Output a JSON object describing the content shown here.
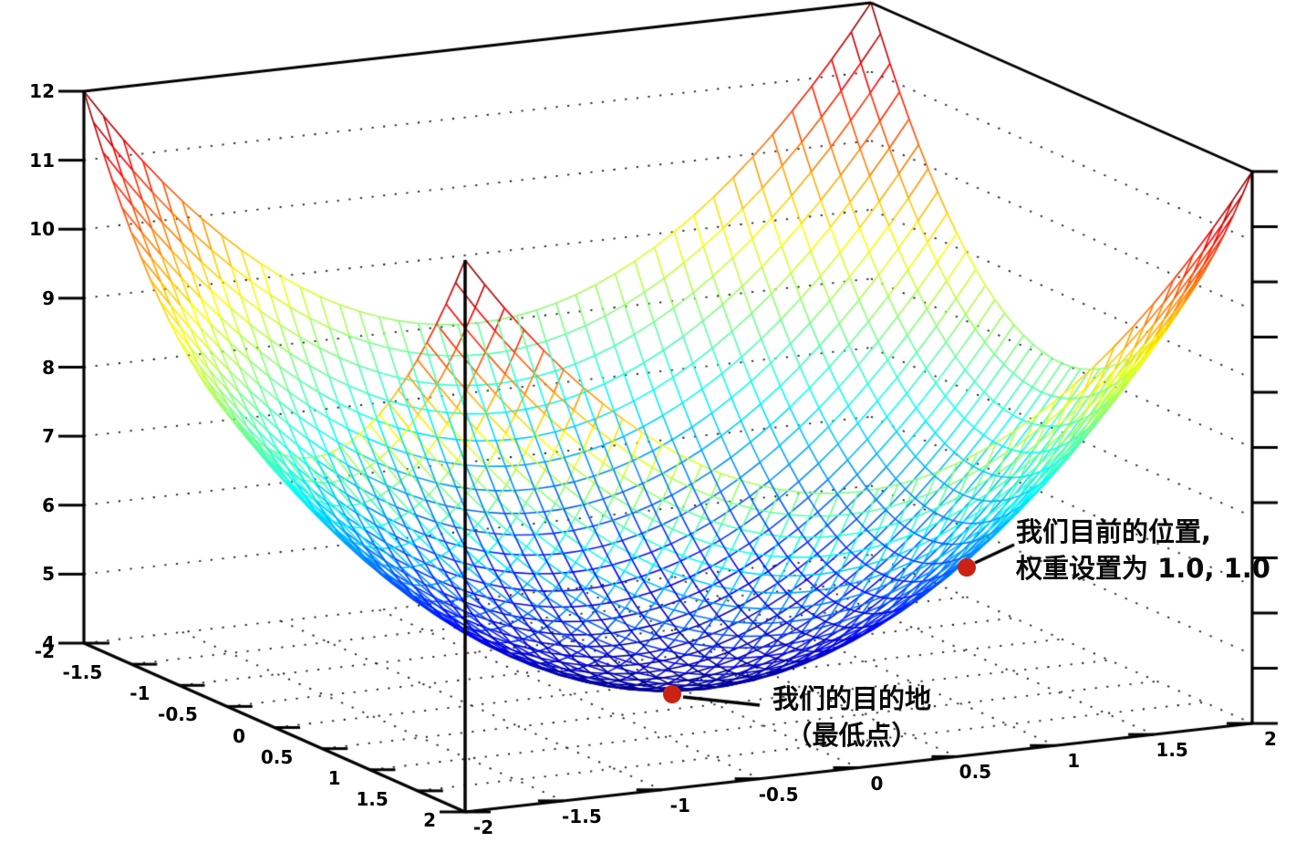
{
  "chart_data": {
    "type": "3d-surface-wireframe",
    "description": "Bowl-shaped error surface (paraboloid) used to illustrate gradient descent",
    "surface": {
      "formula": "z = x^2 + y^2 + 4",
      "x_range": [
        -2,
        2
      ],
      "y_range": [
        -2,
        2
      ],
      "z_range": [
        4,
        12
      ],
      "mesh_divisions": 40,
      "colormap": "jet"
    },
    "axes": {
      "z_tick_labels": [
        "12",
        "11",
        "10",
        "9",
        "8",
        "7",
        "6",
        "5",
        "4"
      ],
      "z_tick_values": [
        12,
        11,
        10,
        9,
        8,
        7,
        6,
        5,
        4
      ],
      "x_tick_labels": [
        "-2",
        "-1.5",
        "-1",
        "-0.5",
        "0",
        "0.5",
        "1",
        "1.5",
        "2"
      ],
      "x_tick_values": [
        -2,
        -1.5,
        -1,
        -0.5,
        0,
        0.5,
        1,
        1.5,
        2
      ],
      "y_tick_labels": [
        "-2",
        "-1.5",
        "-1",
        "-0.5",
        "0",
        "0.5",
        "1",
        "1.5",
        "2"
      ],
      "y_tick_values": [
        -2,
        -1.5,
        -1,
        -0.5,
        0,
        0.5,
        1,
        1.5,
        2
      ],
      "right_axis_tick_count": 11,
      "grid_style": "dotted"
    },
    "points": [
      {
        "id": "current",
        "x": 1.0,
        "y": 1.0,
        "z": 6.0,
        "color": "#cc2213"
      },
      {
        "id": "destination",
        "x": 0.0,
        "y": 0.0,
        "z": 4.0,
        "color": "#cc2213"
      }
    ]
  },
  "annotations": {
    "current_position": {
      "line1": "我们目前的位置,",
      "line2": "权重设置为 1.0, 1.0"
    },
    "destination": {
      "line1": "我们的目的地",
      "line2": "（最低点）"
    }
  },
  "colors": {
    "background": "#ffffff",
    "axis": "#000000",
    "grid_dots": "#1a1a1a",
    "marker": "#cc2213",
    "annotation_text": "#0a0a0a"
  }
}
